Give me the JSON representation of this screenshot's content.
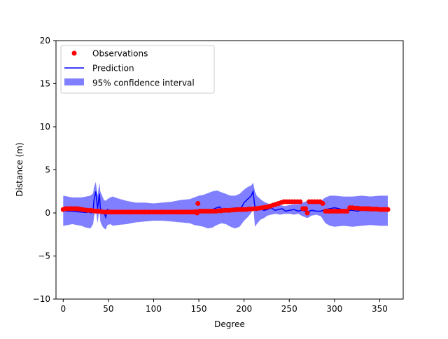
{
  "chart_data": {
    "type": "line",
    "title": "",
    "xlabel": "Degree",
    "ylabel": "Distance (m)",
    "xlim": [
      -8,
      376
    ],
    "ylim": [
      -10,
      20
    ],
    "x_ticks": [
      0,
      50,
      100,
      150,
      200,
      250,
      300,
      350
    ],
    "y_ticks": [
      -10,
      -5,
      0,
      5,
      10,
      15,
      20
    ],
    "grid": false,
    "legend_position": "top-left",
    "legend": {
      "observations": "Observations",
      "prediction": "Prediction",
      "confidence": "95% confidence interval"
    },
    "colors": {
      "observations": "#ff0000",
      "prediction": "#0000ff",
      "confidence": "#8080ff"
    },
    "observations": [
      {
        "x": 0,
        "y": 0.4
      },
      {
        "x": 3,
        "y": 0.5
      },
      {
        "x": 6,
        "y": 0.5
      },
      {
        "x": 9,
        "y": 0.5
      },
      {
        "x": 12,
        "y": 0.5
      },
      {
        "x": 15,
        "y": 0.5
      },
      {
        "x": 18,
        "y": 0.45
      },
      {
        "x": 21,
        "y": 0.4
      },
      {
        "x": 24,
        "y": 0.35
      },
      {
        "x": 27,
        "y": 0.3
      },
      {
        "x": 30,
        "y": 0.3
      },
      {
        "x": 33,
        "y": 0.25
      },
      {
        "x": 36,
        "y": 0.2
      },
      {
        "x": 39,
        "y": 0.2
      },
      {
        "x": 42,
        "y": 0.15
      },
      {
        "x": 45,
        "y": 0.1
      },
      {
        "x": 48,
        "y": 0.1
      },
      {
        "x": 51,
        "y": 0.1
      },
      {
        "x": 54,
        "y": 0.1
      },
      {
        "x": 57,
        "y": 0.1
      },
      {
        "x": 60,
        "y": 0.1
      },
      {
        "x": 63,
        "y": 0.1
      },
      {
        "x": 66,
        "y": 0.1
      },
      {
        "x": 69,
        "y": 0.1
      },
      {
        "x": 72,
        "y": 0.1
      },
      {
        "x": 75,
        "y": 0.1
      },
      {
        "x": 78,
        "y": 0.1
      },
      {
        "x": 81,
        "y": 0.1
      },
      {
        "x": 84,
        "y": 0.1
      },
      {
        "x": 87,
        "y": 0.1
      },
      {
        "x": 90,
        "y": 0.1
      },
      {
        "x": 93,
        "y": 0.1
      },
      {
        "x": 96,
        "y": 0.1
      },
      {
        "x": 99,
        "y": 0.1
      },
      {
        "x": 102,
        "y": 0.1
      },
      {
        "x": 105,
        "y": 0.1
      },
      {
        "x": 108,
        "y": 0.1
      },
      {
        "x": 111,
        "y": 0.1
      },
      {
        "x": 114,
        "y": 0.1
      },
      {
        "x": 117,
        "y": 0.1
      },
      {
        "x": 120,
        "y": 0.1
      },
      {
        "x": 123,
        "y": 0.1
      },
      {
        "x": 126,
        "y": 0.1
      },
      {
        "x": 129,
        "y": 0.1
      },
      {
        "x": 132,
        "y": 0.1
      },
      {
        "x": 135,
        "y": 0.1
      },
      {
        "x": 138,
        "y": 0.1
      },
      {
        "x": 141,
        "y": 0.1
      },
      {
        "x": 144,
        "y": 0.1
      },
      {
        "x": 147,
        "y": 0.15
      },
      {
        "x": 148,
        "y": 0.0
      },
      {
        "x": 149,
        "y": 1.1
      },
      {
        "x": 151,
        "y": 0.2
      },
      {
        "x": 154,
        "y": 0.2
      },
      {
        "x": 157,
        "y": 0.2
      },
      {
        "x": 160,
        "y": 0.2
      },
      {
        "x": 163,
        "y": 0.2
      },
      {
        "x": 166,
        "y": 0.2
      },
      {
        "x": 169,
        "y": 0.2
      },
      {
        "x": 172,
        "y": 0.25
      },
      {
        "x": 175,
        "y": 0.25
      },
      {
        "x": 178,
        "y": 0.3
      },
      {
        "x": 181,
        "y": 0.3
      },
      {
        "x": 184,
        "y": 0.3
      },
      {
        "x": 187,
        "y": 0.35
      },
      {
        "x": 190,
        "y": 0.35
      },
      {
        "x": 193,
        "y": 0.4
      },
      {
        "x": 196,
        "y": 0.4
      },
      {
        "x": 199,
        "y": 0.4
      },
      {
        "x": 202,
        "y": 0.4
      },
      {
        "x": 205,
        "y": 0.45
      },
      {
        "x": 208,
        "y": 0.45
      },
      {
        "x": 211,
        "y": 0.5
      },
      {
        "x": 214,
        "y": 0.5
      },
      {
        "x": 217,
        "y": 0.55
      },
      {
        "x": 220,
        "y": 0.6
      },
      {
        "x": 223,
        "y": 0.65
      },
      {
        "x": 226,
        "y": 0.7
      },
      {
        "x": 229,
        "y": 0.8
      },
      {
        "x": 232,
        "y": 0.9
      },
      {
        "x": 235,
        "y": 1.0
      },
      {
        "x": 238,
        "y": 1.1
      },
      {
        "x": 241,
        "y": 1.2
      },
      {
        "x": 244,
        "y": 1.3
      },
      {
        "x": 247,
        "y": 1.3
      },
      {
        "x": 250,
        "y": 1.3
      },
      {
        "x": 253,
        "y": 1.3
      },
      {
        "x": 256,
        "y": 1.3
      },
      {
        "x": 259,
        "y": 1.3
      },
      {
        "x": 262,
        "y": 1.3
      },
      {
        "x": 265,
        "y": 0.5
      },
      {
        "x": 268,
        "y": 0.5
      },
      {
        "x": 270,
        "y": 0.0
      },
      {
        "x": 272,
        "y": 1.3
      },
      {
        "x": 275,
        "y": 1.3
      },
      {
        "x": 278,
        "y": 1.3
      },
      {
        "x": 281,
        "y": 1.3
      },
      {
        "x": 284,
        "y": 1.3
      },
      {
        "x": 287,
        "y": 1.1
      },
      {
        "x": 290,
        "y": 0.2
      },
      {
        "x": 293,
        "y": 0.2
      },
      {
        "x": 296,
        "y": 0.2
      },
      {
        "x": 299,
        "y": 0.2
      },
      {
        "x": 302,
        "y": 0.2
      },
      {
        "x": 305,
        "y": 0.2
      },
      {
        "x": 308,
        "y": 0.2
      },
      {
        "x": 311,
        "y": 0.2
      },
      {
        "x": 314,
        "y": 0.2
      },
      {
        "x": 317,
        "y": 0.6
      },
      {
        "x": 320,
        "y": 0.6
      },
      {
        "x": 323,
        "y": 0.55
      },
      {
        "x": 326,
        "y": 0.55
      },
      {
        "x": 329,
        "y": 0.5
      },
      {
        "x": 332,
        "y": 0.5
      },
      {
        "x": 335,
        "y": 0.5
      },
      {
        "x": 338,
        "y": 0.5
      },
      {
        "x": 341,
        "y": 0.45
      },
      {
        "x": 344,
        "y": 0.45
      },
      {
        "x": 347,
        "y": 0.45
      },
      {
        "x": 350,
        "y": 0.4
      },
      {
        "x": 353,
        "y": 0.4
      },
      {
        "x": 356,
        "y": 0.4
      },
      {
        "x": 359,
        "y": 0.4
      }
    ],
    "prediction": {
      "x": [
        0,
        5,
        10,
        15,
        20,
        25,
        28,
        31,
        33,
        34,
        36,
        38,
        40,
        41,
        42,
        43,
        45,
        47,
        49,
        52,
        55,
        60,
        70,
        80,
        90,
        100,
        110,
        120,
        130,
        140,
        145,
        150,
        155,
        160,
        165,
        170,
        173,
        176,
        180,
        185,
        190,
        195,
        198,
        200,
        202,
        204,
        206,
        208,
        210,
        212,
        214,
        218,
        222,
        226,
        230,
        234,
        238,
        242,
        246,
        250,
        255,
        260,
        264,
        268,
        270,
        272,
        275,
        280,
        285,
        290,
        295,
        300,
        305,
        310,
        315,
        320,
        325,
        330,
        340,
        350,
        359
      ],
      "y": [
        0.3,
        0.2,
        0.2,
        0.15,
        0.1,
        0.05,
        0.1,
        0.0,
        0.3,
        1.5,
        2.5,
        0.5,
        2.2,
        0.6,
        0.0,
        0.2,
        0.1,
        -0.5,
        0.4,
        0.2,
        0.1,
        0.15,
        0.2,
        0.2,
        0.15,
        0.2,
        0.25,
        0.2,
        0.25,
        0.3,
        0.2,
        0.3,
        0.3,
        0.35,
        0.4,
        0.6,
        0.7,
        0.4,
        0.5,
        0.3,
        0.6,
        0.4,
        0.8,
        1.2,
        1.4,
        1.6,
        1.8,
        2.0,
        2.5,
        0.6,
        0.4,
        0.5,
        0.3,
        0.4,
        0.6,
        0.3,
        0.4,
        0.5,
        0.2,
        0.3,
        0.4,
        0.2,
        0.3,
        0.2,
        0.1,
        0.2,
        0.3,
        0.2,
        0.2,
        0.4,
        0.5,
        0.6,
        0.5,
        0.3,
        0.3,
        0.3,
        0.2,
        0.3,
        0.25,
        0.3,
        0.3
      ]
    },
    "confidence_interval": {
      "x": [
        0,
        5,
        10,
        15,
        20,
        25,
        30,
        33,
        34,
        36,
        38,
        40,
        41,
        43,
        45,
        47,
        49,
        52,
        55,
        60,
        70,
        80,
        90,
        100,
        110,
        120,
        130,
        140,
        145,
        150,
        155,
        160,
        165,
        170,
        175,
        180,
        185,
        190,
        195,
        200,
        204,
        208,
        210,
        212,
        214,
        218,
        222,
        226,
        230,
        235,
        240,
        245,
        250,
        255,
        260,
        265,
        270,
        275,
        280,
        285,
        290,
        295,
        300,
        310,
        320,
        330,
        340,
        350,
        359
      ],
      "lower": [
        -1.5,
        -1.4,
        -1.3,
        -1.4,
        -1.5,
        -1.7,
        -1.8,
        -1.3,
        -0.5,
        0.5,
        -1.2,
        0.5,
        -1.0,
        -1.5,
        -1.8,
        -1.9,
        -1.4,
        -1.3,
        -1.5,
        -1.4,
        -1.3,
        -1.1,
        -1.0,
        -0.9,
        -0.9,
        -1.0,
        -1.1,
        -1.2,
        -1.4,
        -1.5,
        -1.6,
        -1.8,
        -1.7,
        -1.4,
        -1.2,
        -1.3,
        -1.6,
        -1.8,
        -1.6,
        -0.9,
        -0.5,
        0.0,
        1.0,
        -1.6,
        -1.3,
        -0.8,
        -0.6,
        -0.3,
        -0.2,
        -0.1,
        -0.2,
        -0.1,
        -0.1,
        -0.2,
        -0.1,
        -0.4,
        -0.6,
        -0.3,
        -0.2,
        -0.4,
        -1.2,
        -1.5,
        -1.6,
        -1.5,
        -1.6,
        -1.5,
        -1.4,
        -1.5,
        -1.5
      ],
      "upper": [
        2.0,
        1.9,
        1.8,
        1.8,
        1.8,
        1.9,
        2.0,
        2.3,
        3.0,
        3.6,
        2.0,
        3.5,
        2.5,
        2.0,
        1.5,
        1.4,
        1.6,
        1.8,
        1.9,
        1.7,
        1.4,
        1.2,
        1.2,
        1.1,
        1.2,
        1.3,
        1.5,
        1.6,
        1.8,
        2.0,
        2.1,
        2.3,
        2.5,
        2.6,
        2.4,
        2.2,
        2.0,
        2.0,
        2.2,
        2.7,
        3.0,
        3.2,
        3.5,
        2.5,
        2.0,
        1.6,
        1.3,
        1.1,
        1.0,
        0.9,
        0.9,
        0.8,
        0.9,
        1.0,
        1.0,
        1.2,
        1.4,
        1.2,
        1.1,
        1.4,
        1.8,
        2.0,
        2.0,
        1.9,
        1.9,
        2.0,
        1.9,
        2.0,
        2.0
      ]
    }
  }
}
